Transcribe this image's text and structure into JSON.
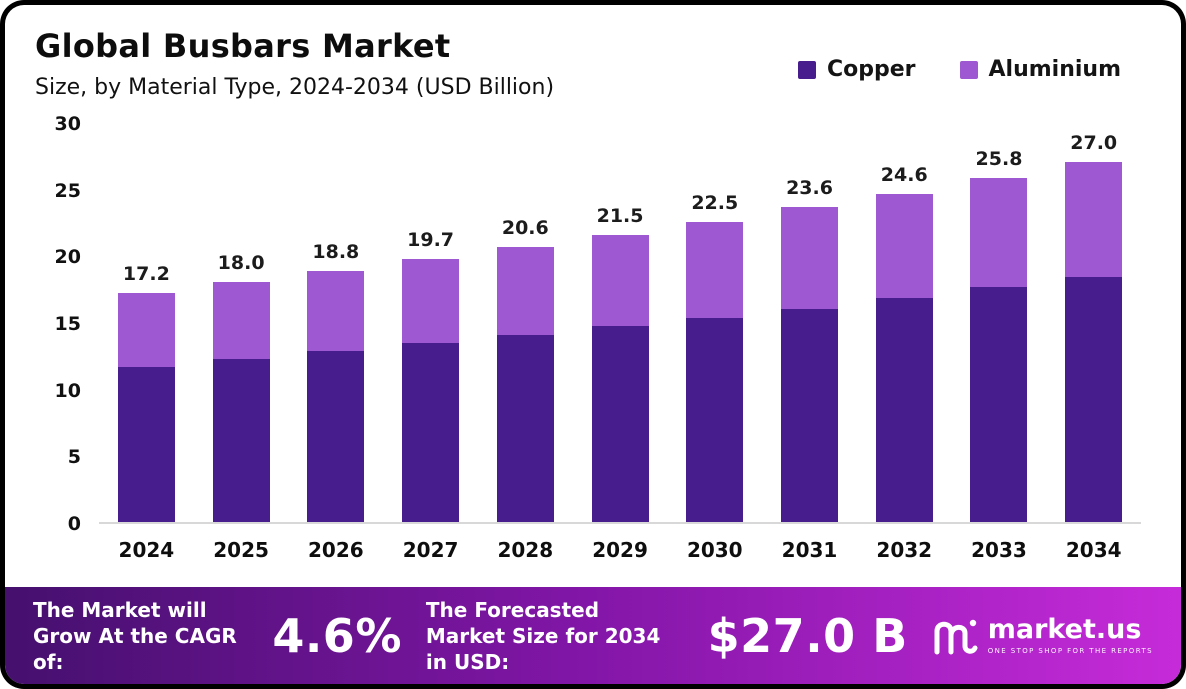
{
  "chart_data": {
    "type": "bar",
    "stacked": true,
    "title": "Global Busbars Market",
    "subtitle": "Size, by Material Type, 2024-2034 (USD Billion)",
    "categories": [
      "2024",
      "2025",
      "2026",
      "2027",
      "2028",
      "2029",
      "2030",
      "2031",
      "2032",
      "2033",
      "2034"
    ],
    "series": [
      {
        "name": "Copper",
        "color": "#471c8c",
        "values": [
          11.6,
          12.2,
          12.8,
          13.4,
          14.0,
          14.7,
          15.3,
          16.0,
          16.8,
          17.6,
          18.4
        ]
      },
      {
        "name": "Aluminium",
        "color": "#9d58d2",
        "values": [
          5.6,
          5.8,
          6.0,
          6.3,
          6.6,
          6.8,
          7.2,
          7.6,
          7.8,
          8.2,
          8.6
        ]
      }
    ],
    "total_labels": [
      "17.2",
      "18.0",
      "18.8",
      "19.7",
      "20.6",
      "21.5",
      "22.5",
      "23.6",
      "24.6",
      "25.8",
      "27.0"
    ],
    "ylim": [
      0,
      30
    ],
    "yticks": [
      0,
      5,
      10,
      15,
      20,
      25,
      30
    ],
    "xlabel": "",
    "ylabel": "",
    "grid": false,
    "legend_position": "top-right"
  },
  "footer": {
    "cagr_label": "The Market will Grow At the CAGR of:",
    "cagr_value": "4.6%",
    "forecast_label": "The Forecasted Market Size for 2034 in USD:",
    "forecast_value": "$27.0 B",
    "brand": "market.us",
    "brand_tagline": "ONE STOP SHOP FOR THE REPORTS"
  }
}
